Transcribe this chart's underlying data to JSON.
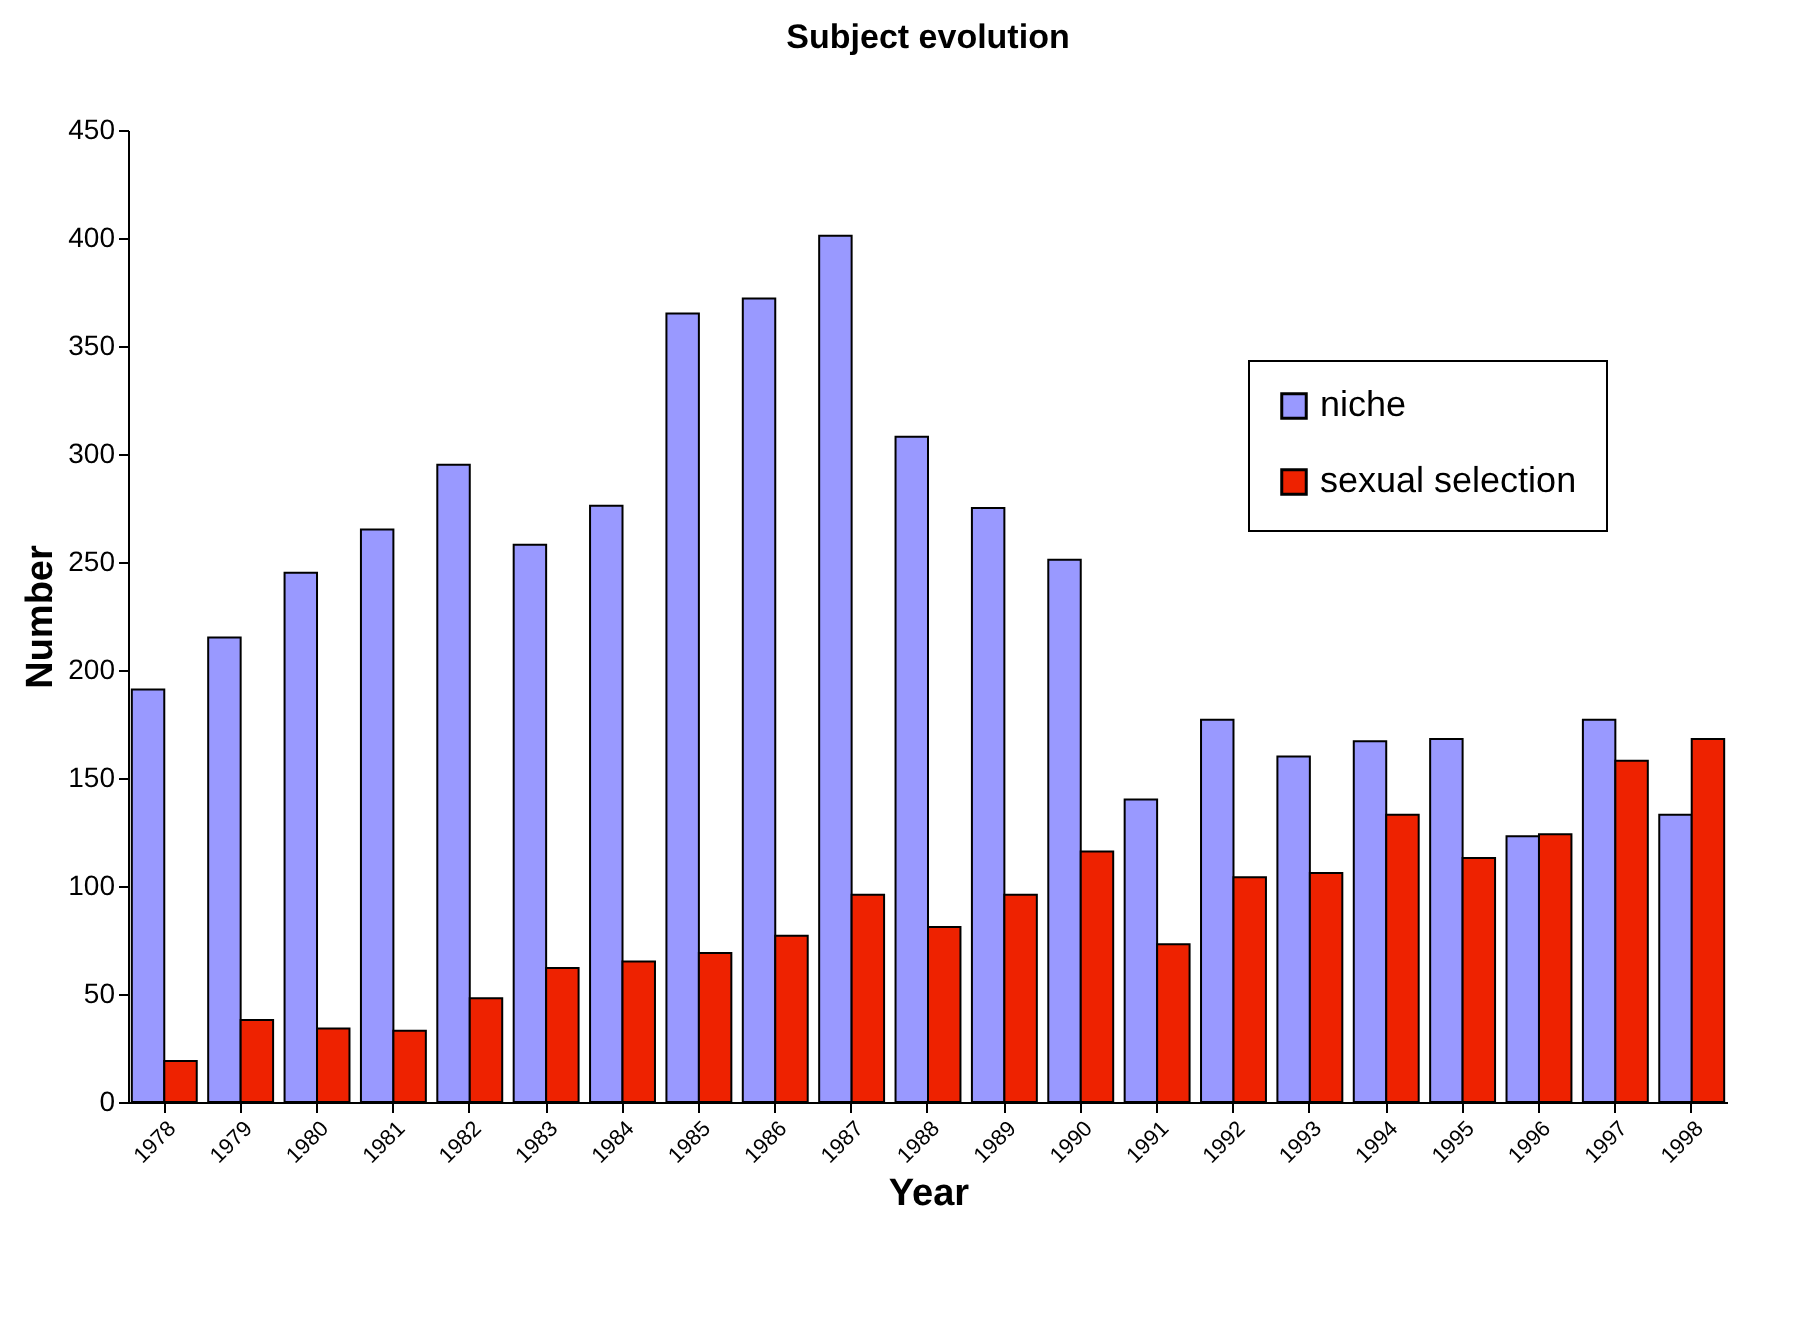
{
  "chart_data": {
    "type": "bar",
    "title": "Subject evolution",
    "xlabel": "Year",
    "ylabel": "Number",
    "categories": [
      "1978",
      "1979",
      "1980",
      "1981",
      "1982",
      "1983",
      "1984",
      "1985",
      "1986",
      "1987",
      "1988",
      "1989",
      "1990",
      "1991",
      "1992",
      "1993",
      "1994",
      "1995",
      "1996",
      "1997",
      "1998"
    ],
    "series": [
      {
        "name": "niche",
        "color": "#9999ff",
        "values": [
          191,
          215,
          245,
          265,
          295,
          258,
          276,
          365,
          372,
          401,
          308,
          275,
          251,
          140,
          177,
          160,
          167,
          168,
          123,
          177,
          133
        ]
      },
      {
        "name": "sexual selection",
        "color": "#ee2200",
        "values": [
          19,
          38,
          34,
          33,
          48,
          62,
          65,
          69,
          77,
          96,
          81,
          96,
          116,
          73,
          104,
          106,
          133,
          113,
          124,
          158,
          168
        ]
      }
    ],
    "ylim": [
      0,
      450
    ],
    "yticks": [
      0,
      50,
      100,
      150,
      200,
      250,
      300,
      350,
      400,
      450
    ],
    "grid": false,
    "legend": "top right"
  }
}
